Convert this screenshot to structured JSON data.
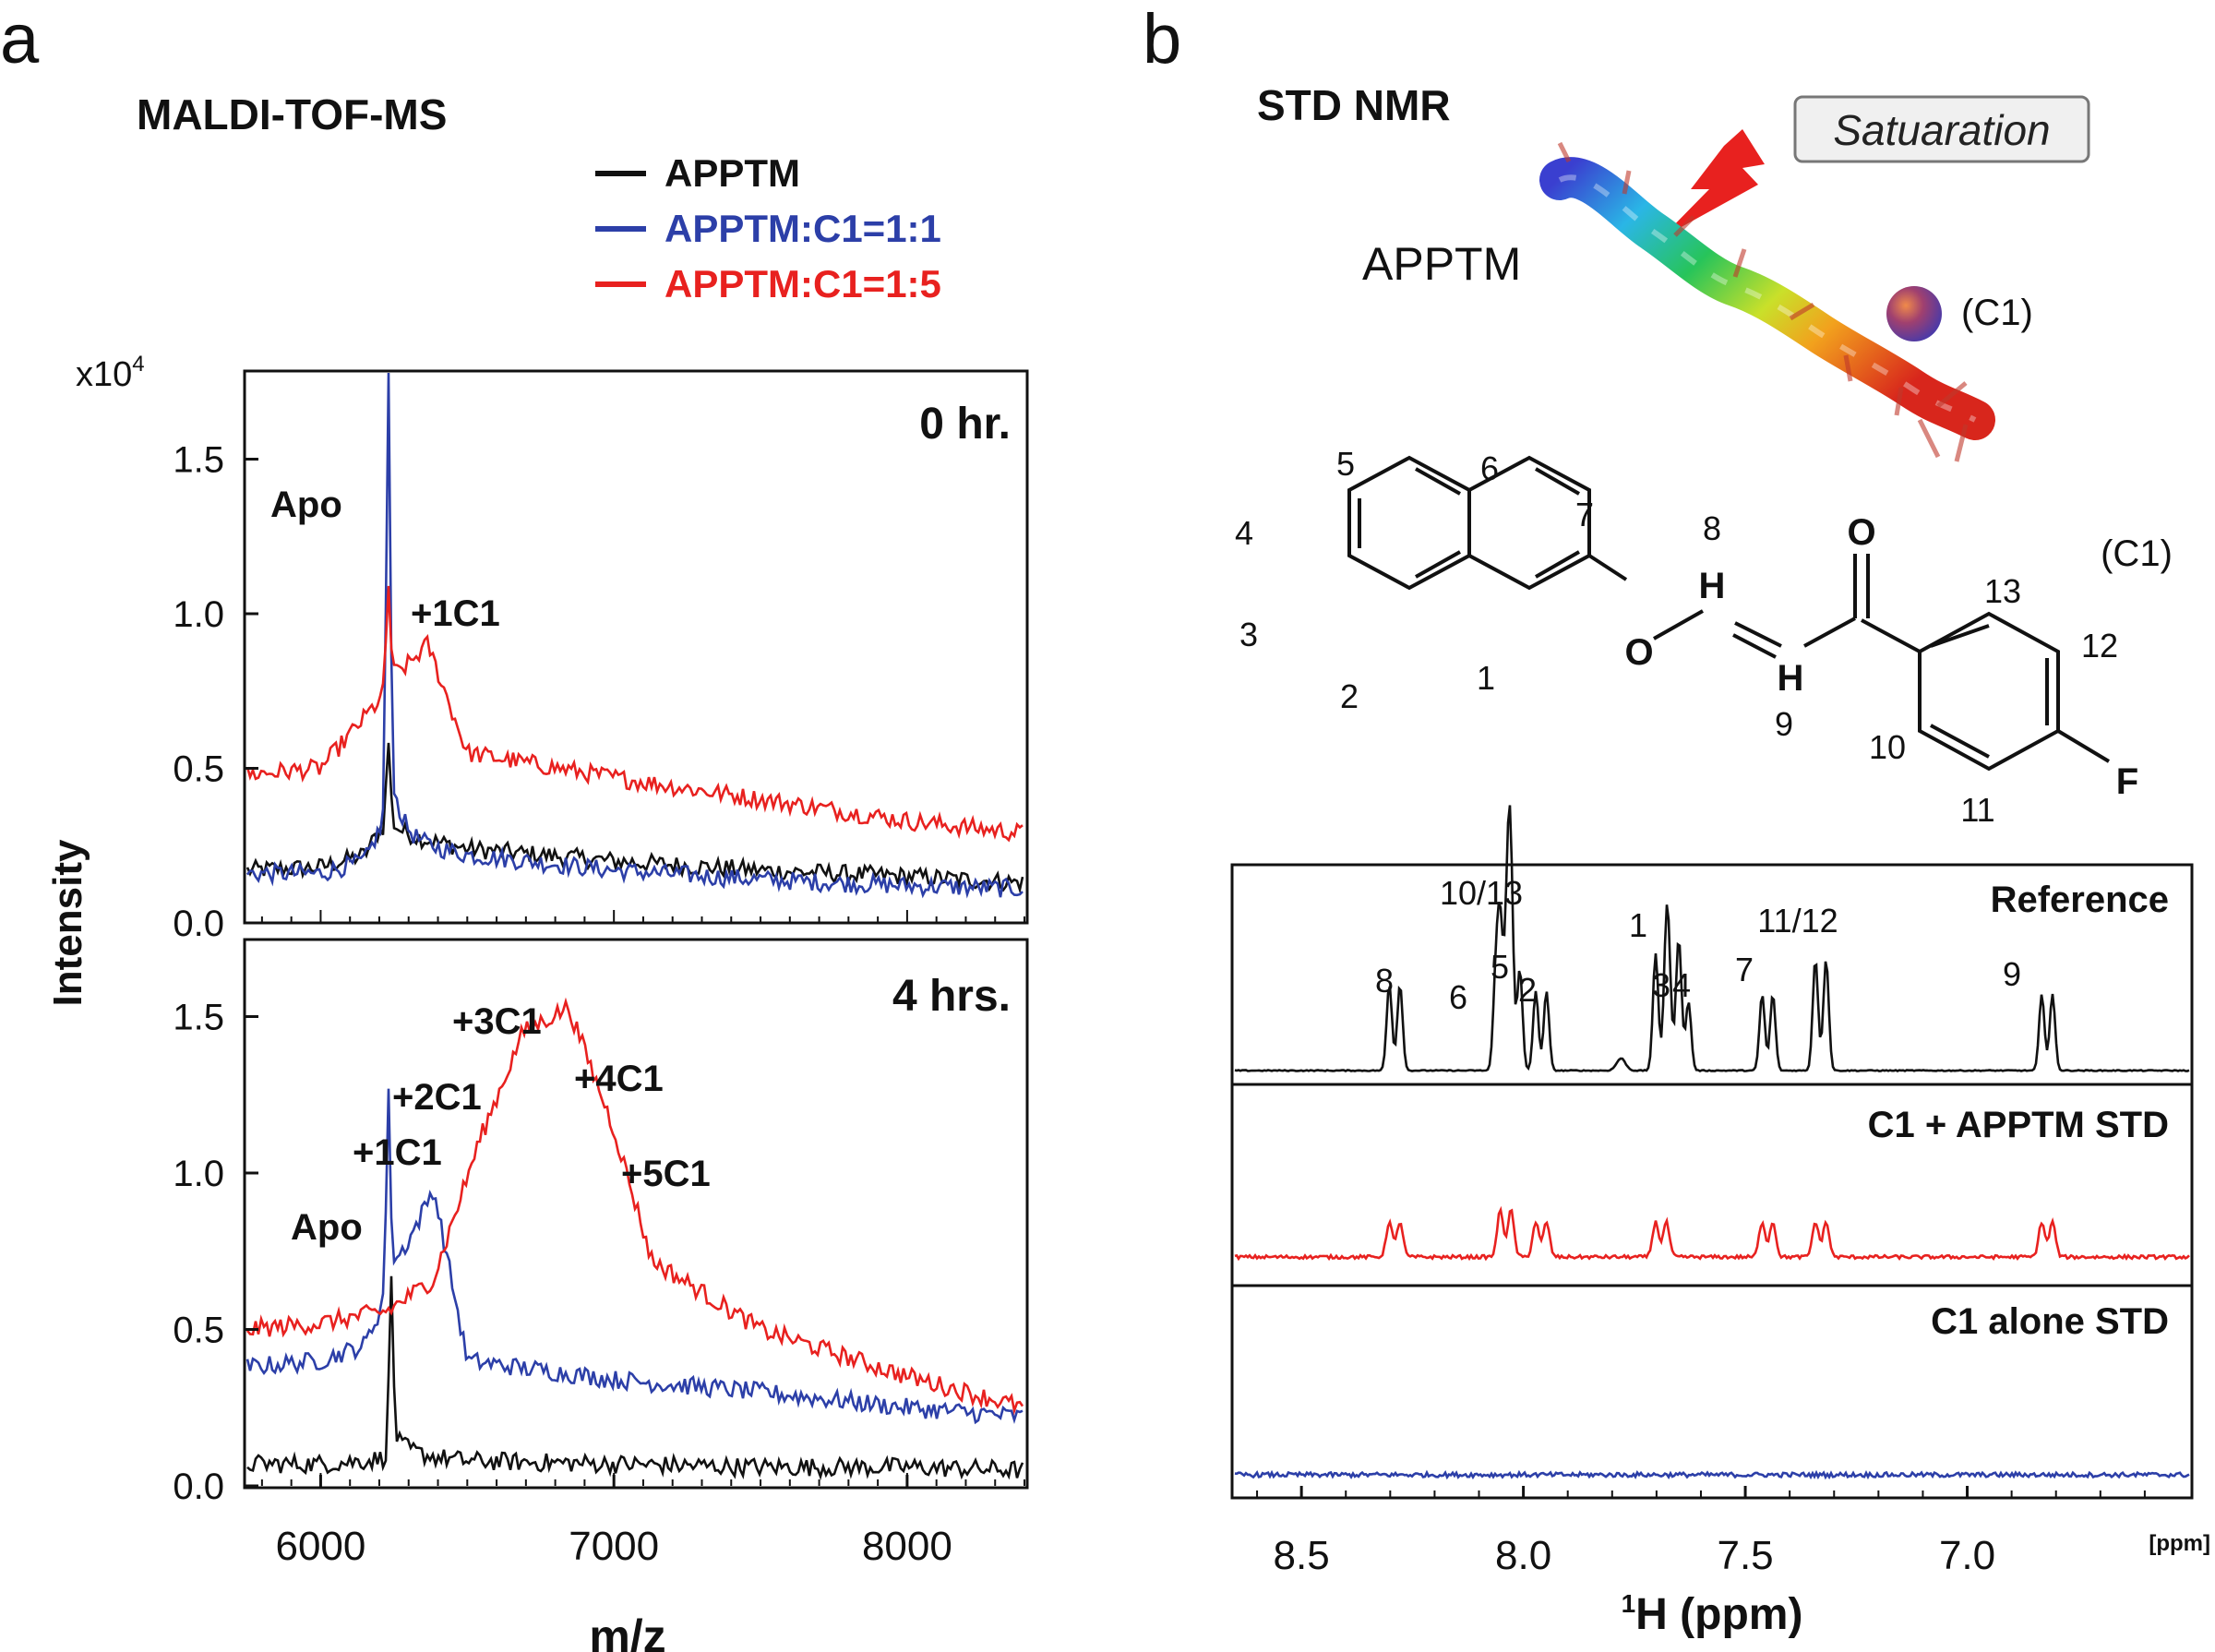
{
  "panel_a": {
    "letter": "a",
    "title": "MALDI-TOF-MS",
    "legend": [
      {
        "label": "APPTM",
        "color": "#111111"
      },
      {
        "label": "APPTM:C1=1:1",
        "color": "#2c3fa8"
      },
      {
        "label": "APPTM:C1=1:5",
        "color": "#e8211f"
      }
    ],
    "y_multiplier": "x10",
    "y_multiplier_exp": "4",
    "ylabel": "Intensity",
    "xlabel": "m/z",
    "x_ticks": [
      "6000",
      "7000",
      "8000"
    ],
    "y_ticks": [
      "0.0",
      "0.5",
      "1.0",
      "1.5"
    ]
  },
  "panel_b": {
    "letter": "b",
    "title": "STD NMR",
    "saturation_label": "Satuaration",
    "protein_label": "APPTM",
    "ligand_label": "(C1)",
    "structure_label": "(C1)",
    "atoms": {
      "O": "O",
      "H": "H",
      "F": "F"
    },
    "atom_numbers": [
      "1",
      "2",
      "3",
      "4",
      "5",
      "6",
      "7",
      "8",
      "9",
      "10",
      "11",
      "12",
      "13"
    ],
    "xlabel_sup": "1",
    "xlabel": "H (ppm)",
    "x_unit": "[ppm]",
    "x_ticks": [
      "8.5",
      "8.0",
      "7.5",
      "7.0"
    ]
  },
  "chart_data": [
    {
      "type": "line",
      "panel": "a-top",
      "title": "0 hr.",
      "xlabel": "m/z",
      "ylabel": "Intensity (x10^4)",
      "xlim": [
        5750,
        8400
      ],
      "ylim": [
        0,
        1.75
      ],
      "series": [
        {
          "name": "APPTM",
          "color": "#111111",
          "x": [
            5750,
            6000,
            6150,
            6200,
            6230,
            6300,
            6500,
            7000,
            7500,
            8000,
            8400
          ],
          "y": [
            0.17,
            0.18,
            0.22,
            0.3,
            0.55,
            0.28,
            0.24,
            0.2,
            0.17,
            0.15,
            0.13
          ]
        },
        {
          "name": "APPTM:C1=1:1",
          "color": "#2c3fa8",
          "x": [
            5750,
            6000,
            6150,
            6200,
            6230,
            6300,
            6500,
            7000,
            7500,
            8000,
            8400
          ],
          "y": [
            0.16,
            0.16,
            0.2,
            0.3,
            1.65,
            0.26,
            0.22,
            0.17,
            0.14,
            0.12,
            0.11
          ]
        },
        {
          "name": "APPTM:C1=1:5",
          "color": "#e8211f",
          "x": [
            5750,
            6000,
            6230,
            6365,
            6500,
            7000,
            7500,
            8000,
            8400
          ],
          "y": [
            0.48,
            0.5,
            1.05,
            0.9,
            0.55,
            0.47,
            0.4,
            0.33,
            0.29
          ]
        }
      ],
      "annotations": [
        "Apo",
        "+1C1"
      ]
    },
    {
      "type": "line",
      "panel": "a-bottom",
      "title": "4 hrs.",
      "xlabel": "m/z",
      "ylabel": "Intensity (x10^4)",
      "xlim": [
        5750,
        8400
      ],
      "ylim": [
        0,
        1.75
      ],
      "series": [
        {
          "name": "APPTM",
          "color": "#111111",
          "x": [
            5750,
            6000,
            6150,
            6240,
            6300,
            6500,
            7000,
            7500,
            8000,
            8400
          ],
          "y": [
            0.07,
            0.07,
            0.08,
            0.58,
            0.1,
            0.08,
            0.07,
            0.06,
            0.06,
            0.05
          ]
        },
        {
          "name": "APPTM:C1=1:1",
          "color": "#2c3fa8",
          "x": [
            5750,
            6000,
            6150,
            6230,
            6385,
            6500,
            7000,
            7500,
            8000,
            8400
          ],
          "y": [
            0.38,
            0.4,
            0.45,
            1.16,
            0.95,
            0.4,
            0.34,
            0.3,
            0.25,
            0.22
          ]
        },
        {
          "name": "APPTM:C1=1:5",
          "color": "#e8211f",
          "x": [
            5750,
            6000,
            6230,
            6385,
            6540,
            6690,
            6845,
            7000,
            7130,
            7500,
            8000,
            8400
          ],
          "y": [
            0.5,
            0.52,
            0.56,
            0.66,
            1.1,
            1.45,
            1.53,
            1.14,
            0.72,
            0.5,
            0.35,
            0.25
          ]
        }
      ],
      "annotations": [
        "Apo",
        "+1C1",
        "+2C1",
        "+3C1",
        "+4C1",
        "+5C1"
      ]
    },
    {
      "type": "line",
      "panel": "b-nmr",
      "xlabel": "1H (ppm)",
      "xlim": [
        8.65,
        6.5
      ],
      "x_reversed": true,
      "spectra": [
        {
          "name": "Reference",
          "color": "#111111",
          "peaks": [
            {
              "label": "8",
              "ppm": 8.29,
              "height": 0.85
            },
            {
              "label": "10/13",
              "ppm": 8.04,
              "height": 1.35
            },
            {
              "label": "6",
              "ppm": 8.05,
              "height": 0.9
            },
            {
              "label": "5",
              "ppm": 8.02,
              "height": 1.0
            },
            {
              "label": "2",
              "ppm": 7.96,
              "height": 0.78
            },
            {
              "label": "1",
              "ppm": 7.69,
              "height": 1.15
            },
            {
              "label": "3",
              "ppm": 7.66,
              "height": 0.7
            },
            {
              "label": "4",
              "ppm": 7.64,
              "height": 0.68
            },
            {
              "label": "7",
              "ppm": 7.45,
              "height": 0.75
            },
            {
              "label": "11/12",
              "ppm": 7.33,
              "height": 1.1
            },
            {
              "label": "9",
              "ppm": 6.82,
              "height": 0.75
            }
          ]
        },
        {
          "name": "C1 + APPTM STD",
          "color": "#e8211f",
          "peaks_ppm": [
            8.29,
            8.04,
            7.96,
            7.69,
            7.45,
            7.33,
            6.82
          ]
        },
        {
          "name": "C1 alone  STD",
          "color": "#2c3fa8",
          "peaks_ppm": []
        }
      ]
    }
  ]
}
